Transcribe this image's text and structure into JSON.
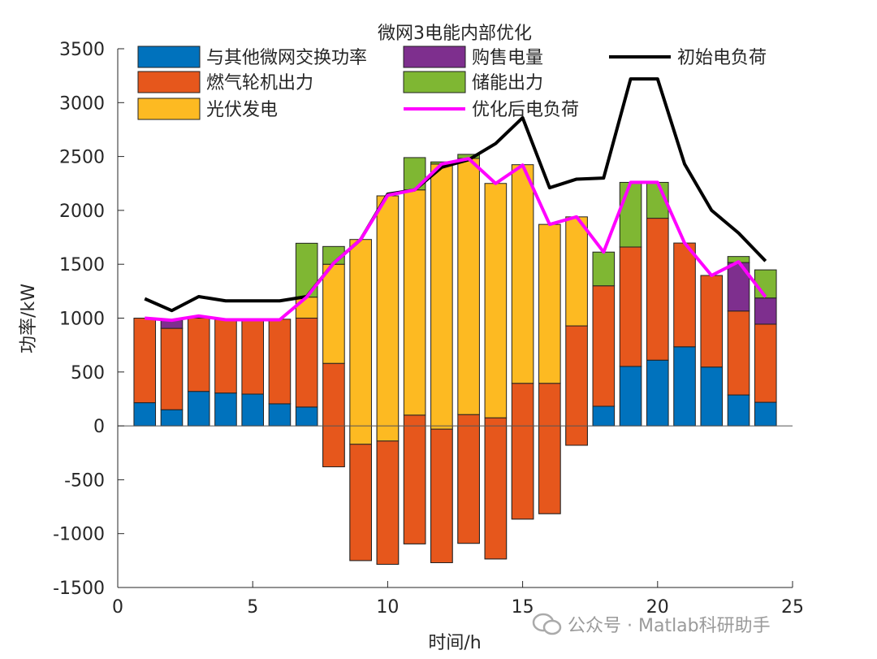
{
  "chart_data": {
    "type": "bar",
    "subtype": "stacked bar with lines",
    "title": "微网3电能内部优化",
    "xlabel": "时间/h",
    "ylabel": "功率/kW",
    "xlim": [
      0,
      25
    ],
    "ylim": [
      -1500,
      3500
    ],
    "xticks": [
      "0",
      "5",
      "10",
      "15",
      "20",
      "25"
    ],
    "xtick_values": [
      0,
      5,
      10,
      15,
      20,
      25
    ],
    "yticks": [
      "-1500",
      "-1000",
      "-500",
      "0",
      "500",
      "1000",
      "1500",
      "2000",
      "2500",
      "3000",
      "3500"
    ],
    "ytick_values": [
      -1500,
      -1000,
      -500,
      0,
      500,
      1000,
      1500,
      2000,
      2500,
      3000,
      3500
    ],
    "grid": false,
    "legend_placement": "top",
    "x": [
      1,
      2,
      3,
      4,
      5,
      6,
      7,
      8,
      9,
      10,
      11,
      12,
      13,
      14,
      15,
      16,
      17,
      18,
      19,
      20,
      21,
      22,
      23,
      24
    ],
    "bar_series": [
      {
        "name": "与其他微网交换功率",
        "color": "#0072BD",
        "values": [
          215,
          150,
          320,
          305,
          295,
          205,
          175,
          -380,
          -1250,
          -1285,
          -1095,
          -1270,
          -1090,
          -1235,
          -865,
          -815,
          -180,
          182,
          552,
          610,
          734,
          546,
          287,
          219
        ]
      },
      {
        "name": "燃气轮机出力",
        "color": "#E6571C",
        "values": [
          785,
          755,
          680,
          680,
          690,
          785,
          825,
          960,
          1080,
          1145,
          1195,
          1240,
          1195,
          1310,
          1260,
          1210,
          1108,
          1118,
          1108,
          1317,
          963,
          850,
          779,
          725
        ]
      },
      {
        "name": "光伏发电",
        "color": "#FDBA22",
        "values": [
          0,
          0,
          0,
          0,
          0,
          0,
          195,
          920,
          1900,
          2275,
          2090,
          2460,
          2377,
          2175,
          2029,
          1475,
          1012,
          0,
          0,
          0,
          0,
          0,
          0,
          0
        ]
      },
      {
        "name": "购售电量",
        "color": "#7E2F8E",
        "values": [
          0,
          75,
          0,
          0,
          0,
          0,
          0,
          0,
          0,
          0,
          0,
          0,
          0,
          0,
          0,
          0,
          0,
          0,
          0,
          0,
          0,
          0,
          450,
          243
        ]
      },
      {
        "name": "储能出力",
        "color": "#7FB733",
        "values": [
          0,
          0,
          0,
          0,
          0,
          0,
          500,
          165,
          0,
          0,
          300,
          20,
          38,
          0,
          0,
          0,
          0,
          313,
          600,
          333,
          0,
          0,
          56,
          261
        ]
      }
    ],
    "line_series": [
      {
        "name": "初始电负荷",
        "color": "#000000",
        "values": [
          1180,
          1070,
          1200,
          1160,
          1160,
          1160,
          1200,
          1510,
          1730,
          2150,
          2190,
          2400,
          2470,
          2620,
          2860,
          2210,
          2290,
          2300,
          3220,
          3220,
          2430,
          2000,
          1790,
          1530
        ]
      },
      {
        "name": "优化后电负荷",
        "color": "#FF00FF",
        "values": [
          1000,
          980,
          1020,
          985,
          985,
          985,
          1195,
          1510,
          1730,
          2140,
          2190,
          2430,
          2480,
          2250,
          2420,
          1870,
          1940,
          1613,
          2260,
          2260,
          1697,
          1396,
          1523,
          1196
        ]
      }
    ],
    "legend": [
      {
        "label": "与其他微网交换功率",
        "kind": "bar",
        "color": "#0072BD"
      },
      {
        "label": "购售电量",
        "kind": "bar",
        "color": "#7E2F8E"
      },
      {
        "label": "初始电负荷",
        "kind": "line",
        "color": "#000000"
      },
      {
        "label": "燃气轮机出力",
        "kind": "bar",
        "color": "#E6571C"
      },
      {
        "label": "储能出力",
        "kind": "bar",
        "color": "#7FB733"
      },
      {
        "label": "光伏发电",
        "kind": "bar",
        "color": "#FDBA22"
      },
      {
        "label": "优化后电负荷",
        "kind": "line",
        "color": "#FF00FF"
      }
    ]
  },
  "watermark": {
    "text": "公众号 · Matlab科研助手",
    "icon": "wechat-icon"
  }
}
